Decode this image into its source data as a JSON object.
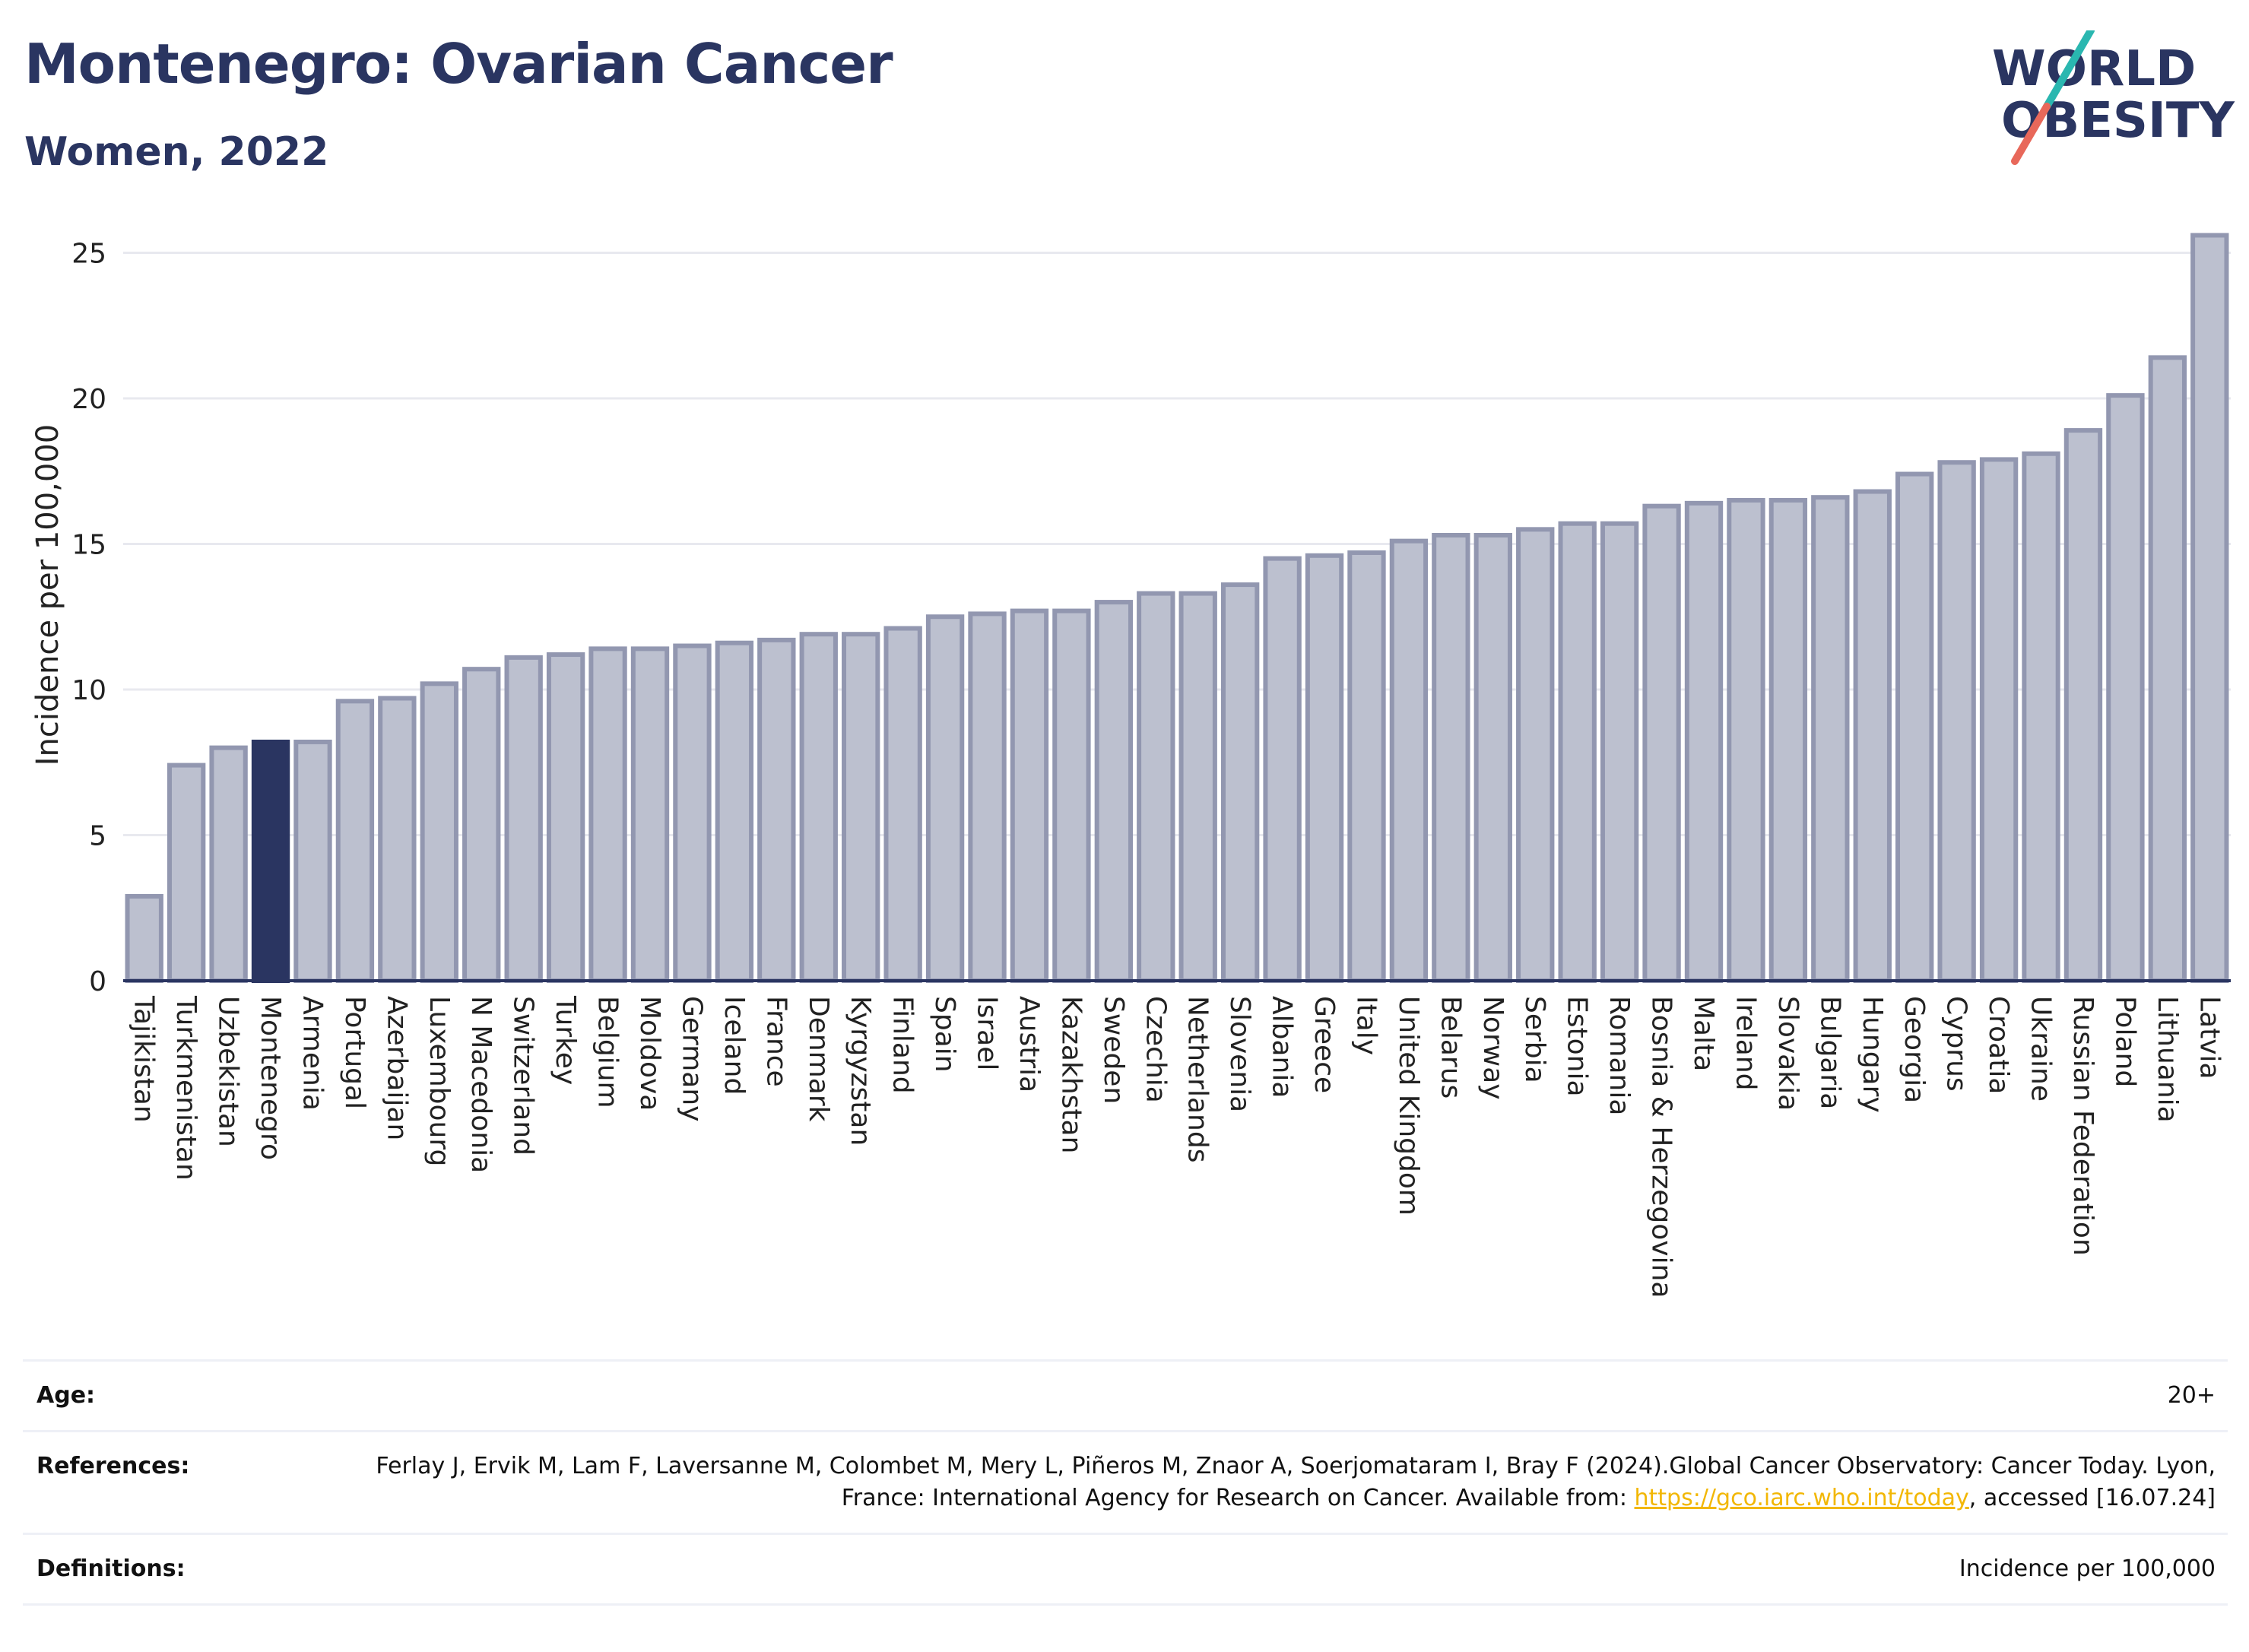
{
  "header": {
    "title": "Montenegro: Ovarian Cancer",
    "subtitle": "Women, 2022",
    "logo_line1": "WORLD",
    "logo_line2": "OBESITY"
  },
  "colors": {
    "highlight": "#2a3561",
    "bar_fill": "#bcc0cf",
    "bar_stroke": "#9297b0",
    "title": "#2a3561",
    "link": "#f2b705",
    "logo_teal": "#2ab7b0",
    "logo_coral": "#e8685a"
  },
  "chart_data": {
    "type": "bar",
    "ylabel": "Incidence per 100,000",
    "xlabel": "",
    "ylim": [
      0,
      26.5
    ],
    "yticks": [
      0,
      5,
      10,
      15,
      20,
      25
    ],
    "grid": true,
    "highlight": "Montenegro",
    "categories": [
      "Tajikistan",
      "Turkmenistan",
      "Uzbekistan",
      "Montenegro",
      "Armenia",
      "Portugal",
      "Azerbaijan",
      "Luxembourg",
      "N Macedonia",
      "Switzerland",
      "Turkey",
      "Belgium",
      "Moldova",
      "Germany",
      "Iceland",
      "France",
      "Denmark",
      "Kyrgyzstan",
      "Finland",
      "Spain",
      "Israel",
      "Austria",
      "Kazakhstan",
      "Sweden",
      "Czechia",
      "Netherlands",
      "Slovenia",
      "Albania",
      "Greece",
      "Italy",
      "United Kingdom",
      "Belarus",
      "Norway",
      "Serbia",
      "Estonia",
      "Romania",
      "Bosnia & Herzegovina",
      "Malta",
      "Ireland",
      "Slovakia",
      "Bulgaria",
      "Hungary",
      "Georgia",
      "Cyprus",
      "Croatia",
      "Ukraine",
      "Russian Federation",
      "Poland",
      "Lithuania",
      "Latvia"
    ],
    "values": [
      2.9,
      7.4,
      8.0,
      8.2,
      8.2,
      9.6,
      9.7,
      10.2,
      10.7,
      11.1,
      11.2,
      11.4,
      11.4,
      11.5,
      11.6,
      11.7,
      11.9,
      11.9,
      12.1,
      12.5,
      12.6,
      12.7,
      12.7,
      13.0,
      13.3,
      13.3,
      13.6,
      14.5,
      14.6,
      14.7,
      15.1,
      15.3,
      15.3,
      15.5,
      15.7,
      15.7,
      16.3,
      16.4,
      16.5,
      16.5,
      16.6,
      16.8,
      17.4,
      17.8,
      17.9,
      18.1,
      18.9,
      20.1,
      21.4,
      25.6
    ]
  },
  "info": {
    "age_label": "Age:",
    "age_value": "20+",
    "references_label": "References:",
    "references_text": "Ferlay J, Ervik M, Lam F, Laversanne M, Colombet M, Mery L, Piñeros M, Znaor A, Soerjomataram I, Bray F (2024).Global Cancer Observatory: Cancer Today. Lyon, France: International Agency for Research on Cancer. Available from:",
    "references_link": "https://gco.iarc.who.int/today",
    "references_suffix": ", accessed [16.07.24]",
    "definitions_label": "Definitions:",
    "definitions_value": "Incidence per 100,000"
  }
}
